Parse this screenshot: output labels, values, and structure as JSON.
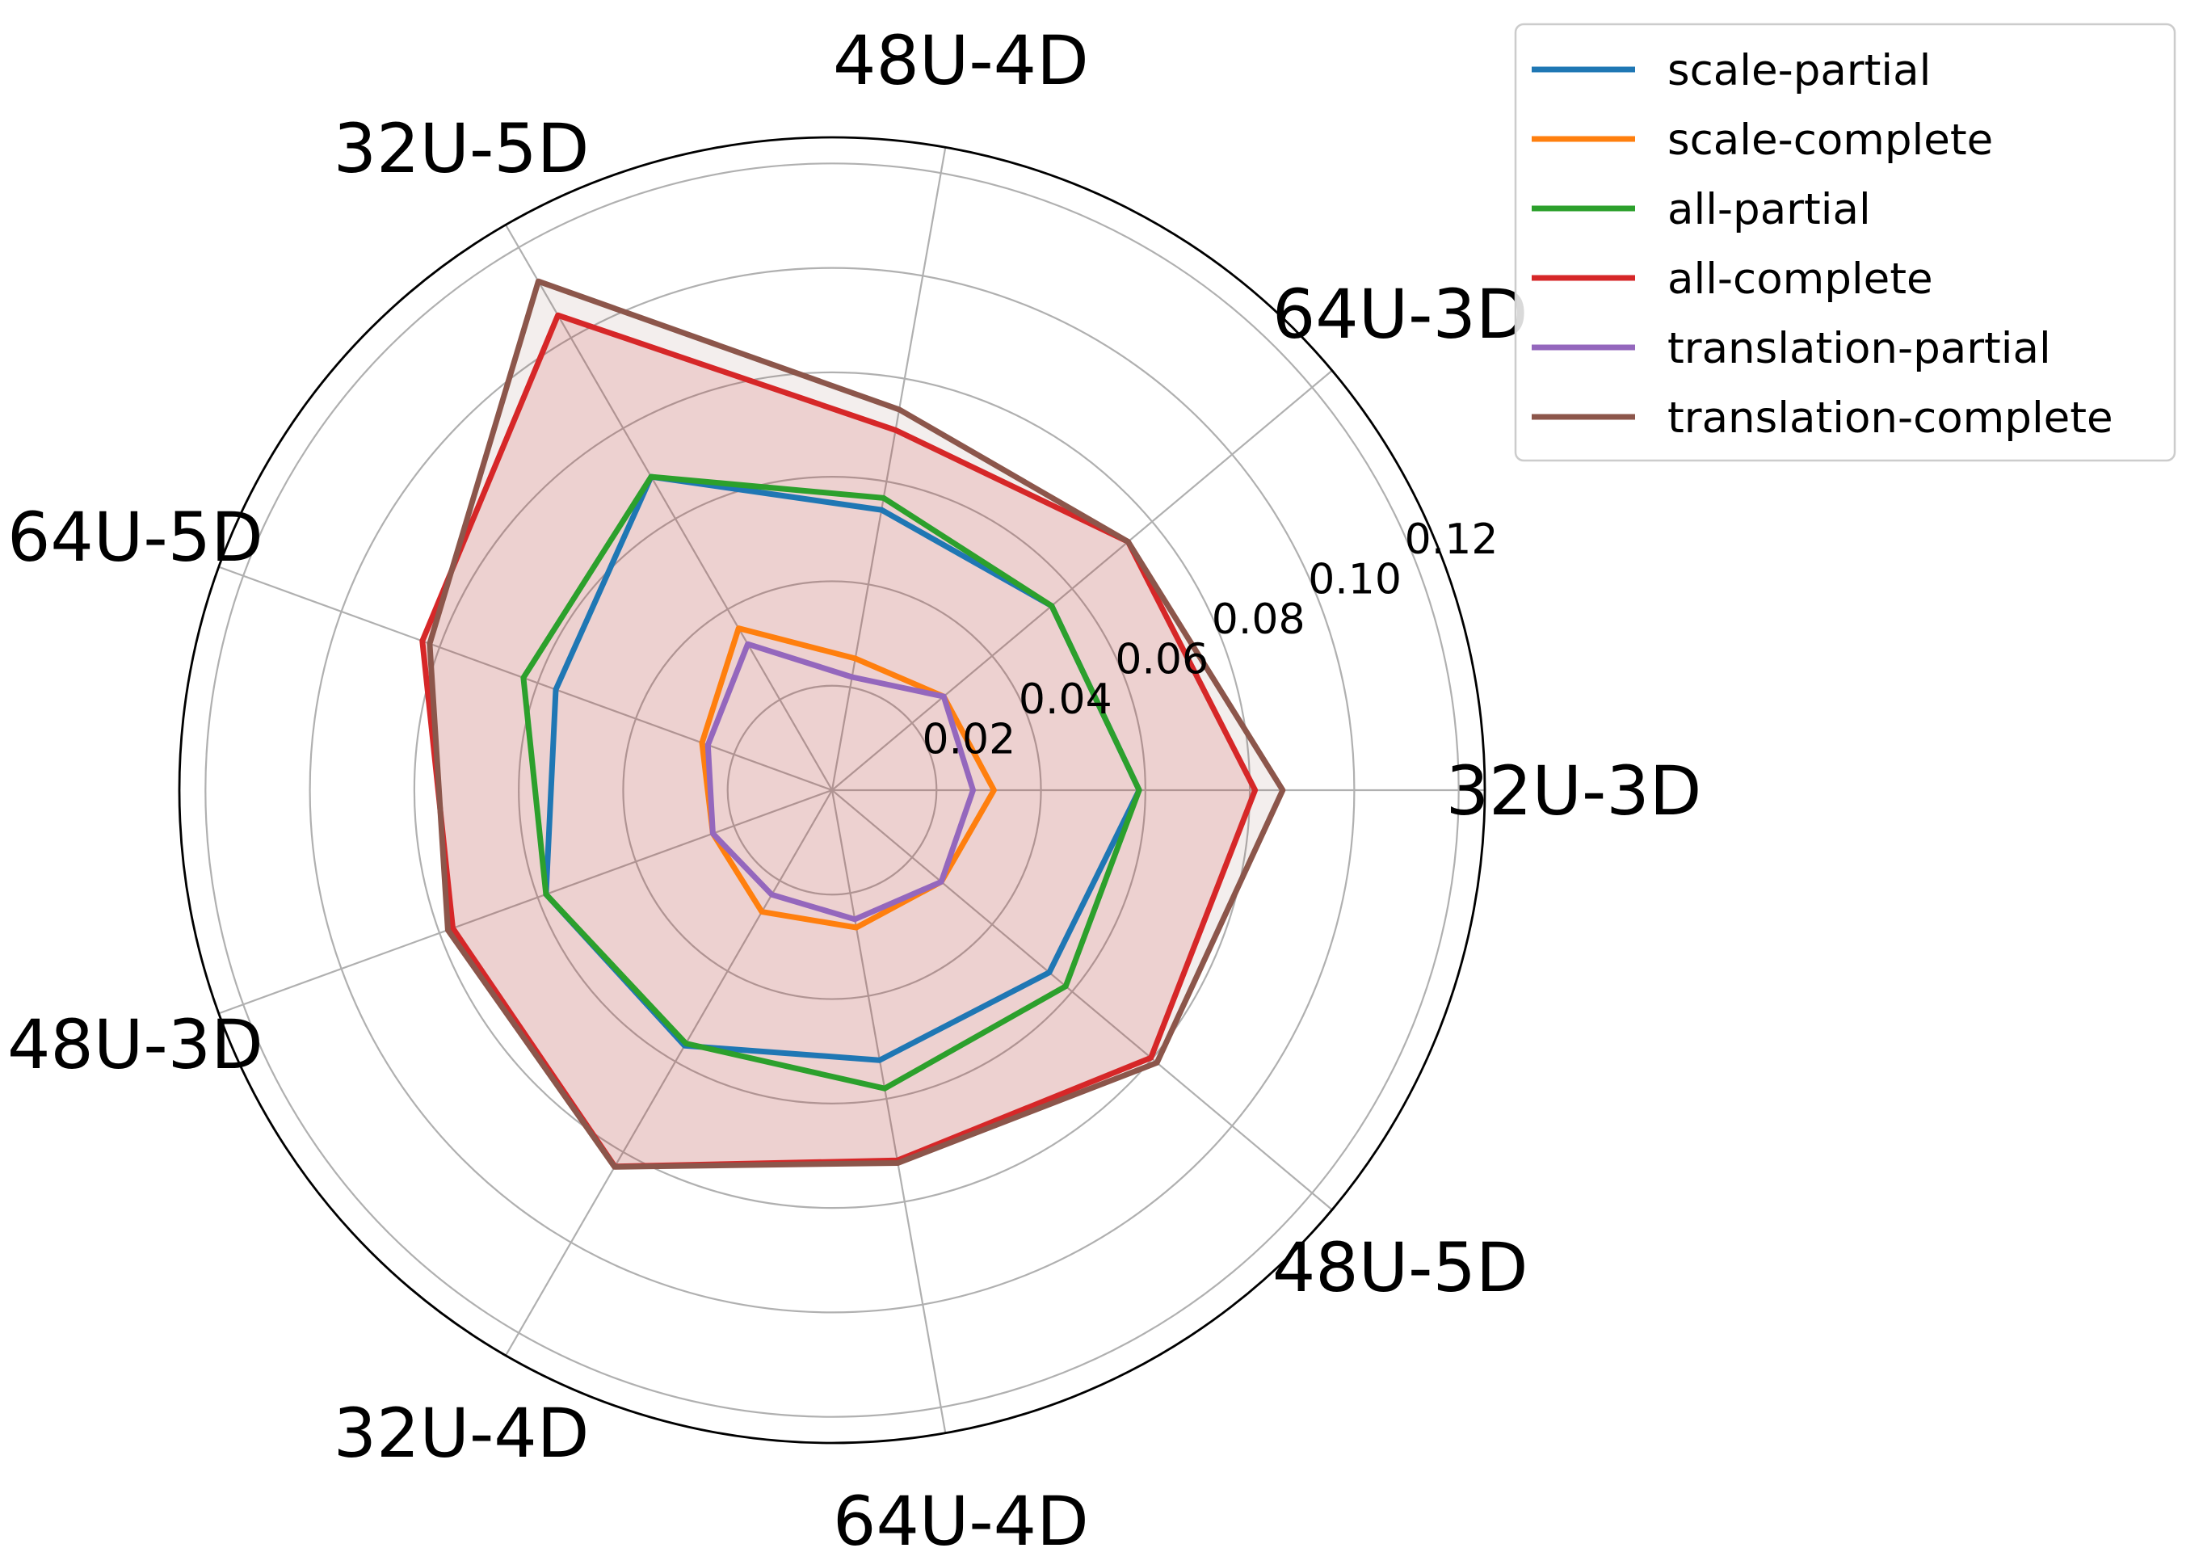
{
  "chart_data": {
    "type": "radar",
    "title": "",
    "categories": [
      "32U-3D",
      "64U-3D",
      "48U-4D",
      "32U-5D",
      "64U-5D",
      "48U-3D",
      "32U-4D",
      "64U-4D",
      "48U-5D"
    ],
    "rticks": [
      0.02,
      0.04,
      0.06,
      0.08,
      0.1,
      0.12
    ],
    "rtick_labels": [
      "0.02",
      "0.04",
      "0.06",
      "0.08",
      "0.10",
      "0.12"
    ],
    "rlim": [
      0,
      0.125
    ],
    "grid": true,
    "legend_position": "upper-right-outside",
    "series": [
      {
        "name": "scale-partial",
        "color": "#1f77b4",
        "fill_alpha": 0,
        "values": [
          0.0588,
          0.0549,
          0.0545,
          0.0693,
          0.0563,
          0.0583,
          0.0565,
          0.0525,
          0.0543
        ]
      },
      {
        "name": "scale-complete",
        "color": "#ff7f0e",
        "fill_alpha": 0,
        "values": [
          0.031,
          0.0279,
          0.0256,
          0.0358,
          0.0265,
          0.0243,
          0.0269,
          0.0267,
          0.0273
        ]
      },
      {
        "name": "all-partial",
        "color": "#2ca02c",
        "fill_alpha": 0,
        "values": [
          0.0588,
          0.0549,
          0.0568,
          0.0693,
          0.0629,
          0.0583,
          0.056,
          0.058,
          0.0584
        ]
      },
      {
        "name": "all-complete",
        "color": "#d62728",
        "fill_alpha": 0.15,
        "values": [
          0.081,
          0.074,
          0.07,
          0.105,
          0.0835,
          0.0773,
          0.0832,
          0.072,
          0.0797
        ]
      },
      {
        "name": "translation-partial",
        "color": "#9467bd",
        "fill_alpha": 0,
        "values": [
          0.027,
          0.0279,
          0.022,
          0.0323,
          0.0253,
          0.0243,
          0.0231,
          0.0251,
          0.0273
        ]
      },
      {
        "name": "translation-complete",
        "color": "#8c564b",
        "fill_alpha": 0.1,
        "values": [
          0.0863,
          0.074,
          0.074,
          0.1125,
          0.082,
          0.0783,
          0.0833,
          0.0725,
          0.0812
        ]
      }
    ]
  }
}
